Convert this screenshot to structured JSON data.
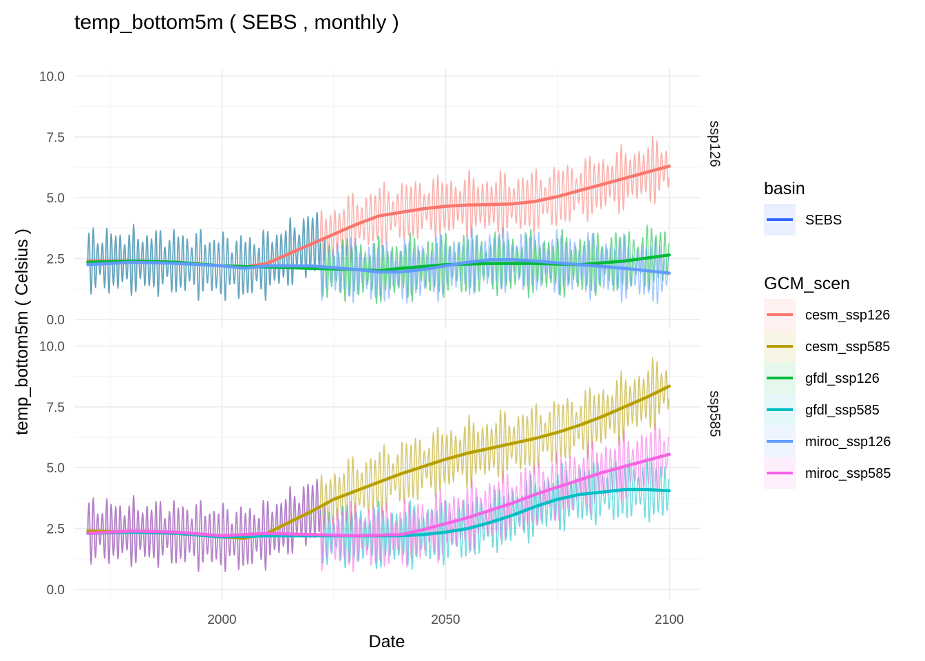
{
  "chart_data": {
    "type": "line",
    "title": "temp_bottom5m ( SEBS , monthly )",
    "xlabel": "Date",
    "ylabel": "temp_bottom5m ( Celsius )",
    "xlim": [
      1967,
      2107
    ],
    "ylim": [
      -0.4,
      10.3
    ],
    "x_ticks": [
      2000,
      2050,
      2100
    ],
    "y_ticks": [
      "0.0",
      "2.5",
      "5.0",
      "7.5",
      "10.0"
    ],
    "grid": true,
    "legend_placement": "right",
    "legends": [
      {
        "title": "basin",
        "entries": [
          {
            "label": "SEBS",
            "color": "#3366ff"
          }
        ]
      },
      {
        "title": "GCM_scen",
        "entries": [
          {
            "label": "cesm_ssp126",
            "color": "#f8766d"
          },
          {
            "label": "cesm_ssp585",
            "color": "#b79f00"
          },
          {
            "label": "gfdl_ssp126",
            "color": "#00ba38"
          },
          {
            "label": "gfdl_ssp585",
            "color": "#00bfc4"
          },
          {
            "label": "miroc_ssp126",
            "color": "#619cff"
          },
          {
            "label": "miroc_ssp585",
            "color": "#f564e3"
          }
        ]
      }
    ],
    "panels": [
      {
        "label": "ssp126",
        "smooth_series": [
          {
            "name": "cesm_ssp126",
            "color": "#f8766d",
            "x": [
              1970,
              1980,
              1990,
              2000,
              2005,
              2010,
              2015,
              2020,
              2025,
              2030,
              2035,
              2040,
              2045,
              2050,
              2055,
              2060,
              2065,
              2070,
              2075,
              2080,
              2085,
              2090,
              2095,
              2100
            ],
            "y": [
              2.4,
              2.4,
              2.35,
              2.2,
              2.15,
              2.3,
              2.7,
              3.1,
              3.5,
              3.9,
              4.25,
              4.4,
              4.55,
              4.65,
              4.7,
              4.72,
              4.75,
              4.85,
              5.05,
              5.3,
              5.55,
              5.8,
              6.05,
              6.3
            ]
          },
          {
            "name": "gfdl_ssp126",
            "color": "#00ba38",
            "x": [
              1970,
              1980,
              1990,
              2000,
              2010,
              2020,
              2030,
              2035,
              2040,
              2050,
              2060,
              2070,
              2080,
              2090,
              2100
            ],
            "y": [
              2.35,
              2.4,
              2.35,
              2.2,
              2.15,
              2.1,
              2.05,
              2.0,
              2.1,
              2.25,
              2.3,
              2.3,
              2.25,
              2.4,
              2.65
            ]
          },
          {
            "name": "miroc_ssp126",
            "color": "#619cff",
            "x": [
              1970,
              1980,
              1990,
              2000,
              2005,
              2010,
              2020,
              2030,
              2035,
              2040,
              2045,
              2050,
              2055,
              2060,
              2065,
              2070,
              2080,
              2090,
              2100
            ],
            "y": [
              2.25,
              2.35,
              2.3,
              2.2,
              2.1,
              2.2,
              2.2,
              2.05,
              1.95,
              1.95,
              2.05,
              2.2,
              2.35,
              2.45,
              2.45,
              2.4,
              2.25,
              2.1,
              1.9
            ]
          }
        ],
        "band": {
          "center": 2.3,
          "amplitude": 1.4
        },
        "hindcast_color": "#5fa2bd",
        "projection_series": [
          {
            "name": "cesm_ssp126",
            "color": "#f8766d",
            "amplitude": 1.4
          },
          {
            "name": "gfdl_ssp126",
            "color": "#00ba38",
            "amplitude": 1.4
          },
          {
            "name": "miroc_ssp126",
            "color": "#619cff",
            "amplitude": 1.4
          }
        ]
      },
      {
        "label": "ssp585",
        "smooth_series": [
          {
            "name": "cesm_ssp585",
            "color": "#b79f00",
            "x": [
              1970,
              1980,
              1990,
              2000,
              2005,
              2010,
              2015,
              2020,
              2025,
              2030,
              2035,
              2040,
              2045,
              2050,
              2055,
              2060,
              2065,
              2070,
              2075,
              2080,
              2085,
              2090,
              2095,
              2100
            ],
            "y": [
              2.4,
              2.35,
              2.3,
              2.15,
              2.1,
              2.3,
              2.75,
              3.2,
              3.7,
              4.05,
              4.4,
              4.75,
              5.05,
              5.35,
              5.6,
              5.8,
              6.0,
              6.2,
              6.45,
              6.75,
              7.1,
              7.5,
              7.9,
              8.35
            ]
          },
          {
            "name": "gfdl_ssp585",
            "color": "#00bfc4",
            "x": [
              1970,
              1980,
              1990,
              2000,
              2010,
              2020,
              2030,
              2040,
              2045,
              2050,
              2055,
              2060,
              2065,
              2070,
              2075,
              2080,
              2085,
              2090,
              2095,
              2100
            ],
            "y": [
              2.3,
              2.35,
              2.3,
              2.15,
              2.2,
              2.2,
              2.2,
              2.2,
              2.25,
              2.35,
              2.5,
              2.75,
              3.05,
              3.4,
              3.7,
              3.9,
              4.0,
              4.1,
              4.1,
              4.05
            ]
          },
          {
            "name": "miroc_ssp585",
            "color": "#f564e3",
            "x": [
              1970,
              1980,
              1990,
              2000,
              2010,
              2020,
              2030,
              2040,
              2045,
              2050,
              2055,
              2060,
              2065,
              2070,
              2075,
              2080,
              2085,
              2090,
              2095,
              2100
            ],
            "y": [
              2.3,
              2.4,
              2.35,
              2.2,
              2.3,
              2.25,
              2.2,
              2.25,
              2.45,
              2.7,
              2.95,
              3.25,
              3.55,
              3.9,
              4.2,
              4.5,
              4.8,
              5.05,
              5.3,
              5.55
            ]
          }
        ],
        "band": {
          "center": 2.3,
          "amplitude": 1.4
        },
        "hindcast_color": "#b27cc6",
        "projection_series": [
          {
            "name": "cesm_ssp585",
            "color": "#b79f00",
            "amplitude": 1.5
          },
          {
            "name": "gfdl_ssp585",
            "color": "#00bfc4",
            "amplitude": 1.4
          },
          {
            "name": "miroc_ssp585",
            "color": "#f564e3",
            "amplitude": 1.5
          }
        ]
      }
    ],
    "hindcast_range": [
      1970,
      2022
    ],
    "projection_range": [
      2022,
      2100
    ]
  }
}
